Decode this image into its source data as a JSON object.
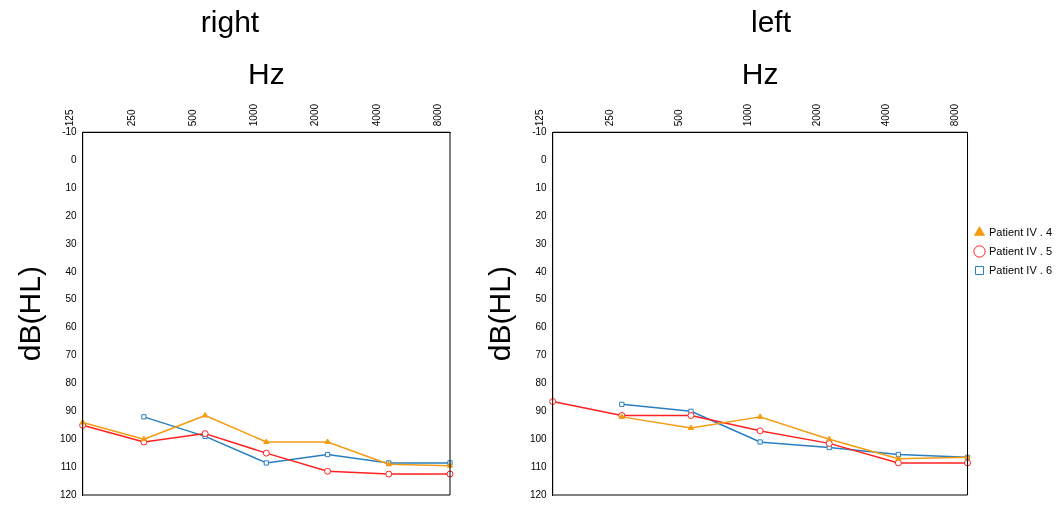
{
  "chart_data": [
    {
      "type": "line",
      "title": "right",
      "xlabel": "Hz",
      "ylabel": "dB(HL)",
      "categories": [
        "125",
        "250",
        "500",
        "1000",
        "2000",
        "4000",
        "8000"
      ],
      "ylim": [
        120,
        -10
      ],
      "yticks": [
        -10,
        0,
        10,
        20,
        30,
        40,
        50,
        60,
        70,
        80,
        90,
        100,
        110,
        120
      ],
      "grid": false,
      "legend": false,
      "series": [
        {
          "color": "#f39c12",
          "marker": "triangle",
          "values": [
            94,
            100,
            91.5,
            101,
            101,
            109,
            109.5
          ]
        },
        {
          "color": "#ff2020",
          "marker": "circle",
          "values": [
            95,
            101,
            98,
            105,
            111.5,
            112.5,
            112.5
          ]
        },
        {
          "color": "#2a7fc0",
          "marker": "square",
          "values": [
            null,
            92,
            99,
            108.5,
            105.5,
            108.5,
            108.5
          ]
        }
      ]
    },
    {
      "type": "line",
      "title": "left",
      "xlabel": "Hz",
      "ylabel": "dB(HL)",
      "categories": [
        "125",
        "250",
        "500",
        "1000",
        "2000",
        "4000",
        "8000"
      ],
      "ylim": [
        120,
        -10
      ],
      "yticks": [
        -10,
        0,
        10,
        20,
        30,
        40,
        50,
        60,
        70,
        80,
        90,
        100,
        110,
        120
      ],
      "grid": false,
      "legend": "right",
      "series": [
        {
          "name": "Patient IV . 4",
          "color": "#f39c12",
          "marker": "triangle",
          "values": [
            null,
            92,
            96,
            92,
            100,
            107,
            106.5
          ]
        },
        {
          "name": "Patient IV . 5",
          "color": "#ff2020",
          "marker": "circle",
          "values": [
            86.5,
            91.5,
            91.5,
            97,
            101.5,
            108.5,
            108.5
          ]
        },
        {
          "name": "Patient IV . 6",
          "color": "#2a7fc0",
          "marker": "square",
          "values": [
            null,
            87.5,
            90,
            101,
            103,
            105.5,
            106.5
          ]
        }
      ]
    }
  ]
}
